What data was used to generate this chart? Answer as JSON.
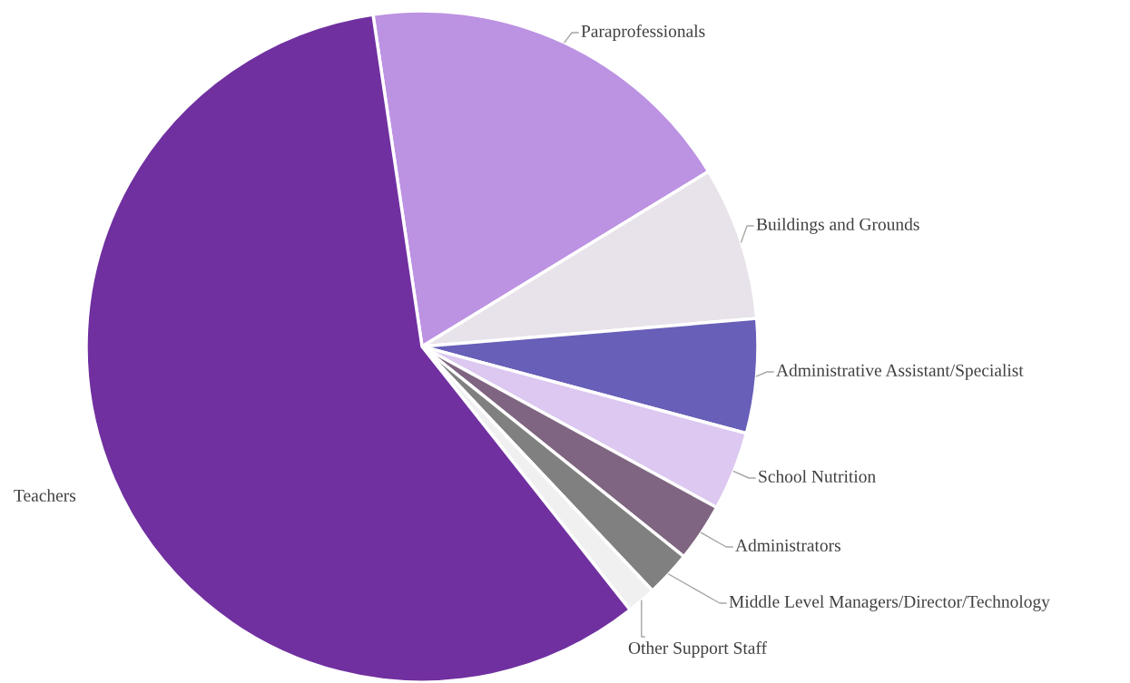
{
  "chart_data": {
    "type": "pie",
    "categories": [
      "Paraprofessionals",
      "Buildings and Grounds",
      "Administrative Assistant/Specialist",
      "School Nutrition",
      "Administrators",
      "Middle Level Managers/Director/Technology",
      "Other Support Staff",
      "Teachers"
    ],
    "values": [
      18.6,
      7.4,
      5.5,
      3.8,
      2.8,
      2.2,
      1.4,
      58.3
    ],
    "colors": [
      "#bc92e2",
      "#e8e2ea",
      "#675fb8",
      "#dcc8f0",
      "#7f6581",
      "#808080",
      "#f0f0f0",
      "#7030a0"
    ]
  }
}
